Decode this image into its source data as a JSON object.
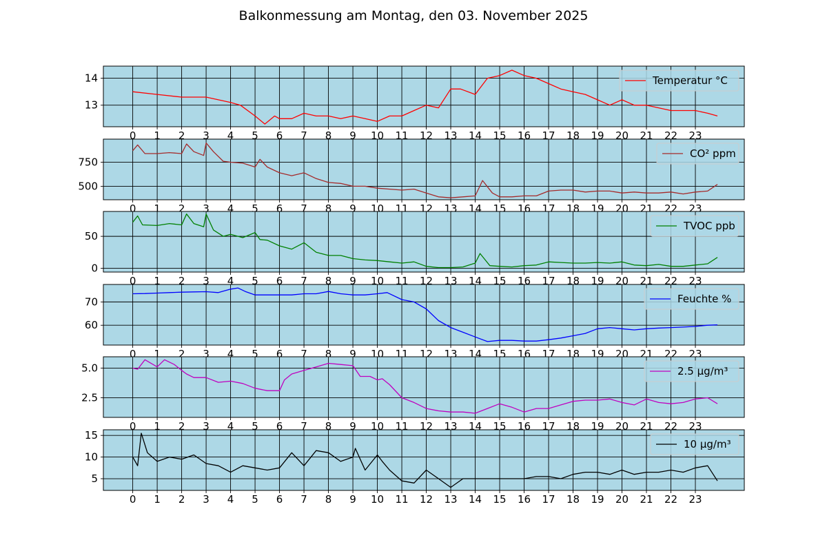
{
  "figure": {
    "title": "Balkonmessung am Montag, den 03. November 2025",
    "background": "#ffffff",
    "panel_background": "#add8e6"
  },
  "chart_data": [
    {
      "type": "line",
      "legend": "top-right",
      "grid": true,
      "x_ticks": [
        0,
        1,
        2,
        3,
        4,
        5,
        6,
        7,
        8,
        9,
        10,
        11,
        12,
        13,
        14,
        15,
        16,
        17,
        18,
        19,
        20,
        21,
        22,
        23
      ],
      "xlim": [
        -1.2,
        25.0
      ],
      "ylim": [
        12.2,
        14.45
      ],
      "y_ticks": [
        13,
        14
      ],
      "y_tick_labels": [
        "13",
        "14"
      ],
      "series": [
        {
          "name": "Temperatur °C",
          "color": "#ff0000",
          "x": [
            0,
            1,
            2,
            3,
            4,
            4.4,
            5,
            5.4,
            5.8,
            6,
            6.5,
            7,
            7.5,
            8,
            8.5,
            9,
            9.5,
            10,
            10.5,
            11,
            11.5,
            12,
            12.5,
            13,
            13.4,
            14,
            14.5,
            15,
            15.5,
            16,
            16.5,
            17,
            17.5,
            18,
            18.5,
            19,
            19.5,
            20,
            20.5,
            21,
            21.5,
            22,
            22.5,
            23,
            23.5,
            23.9
          ],
          "values": [
            13.5,
            13.4,
            13.3,
            13.3,
            13.1,
            13.0,
            12.6,
            12.3,
            12.6,
            12.5,
            12.5,
            12.7,
            12.6,
            12.6,
            12.5,
            12.6,
            12.5,
            12.4,
            12.6,
            12.6,
            12.8,
            13.0,
            12.9,
            13.6,
            13.6,
            13.4,
            14.0,
            14.1,
            14.3,
            14.1,
            14.0,
            13.8,
            13.6,
            13.5,
            13.4,
            13.2,
            13.0,
            13.2,
            13.0,
            13.0,
            12.9,
            12.8,
            12.8,
            12.8,
            12.7,
            12.6
          ]
        }
      ]
    },
    {
      "type": "line",
      "legend": "top-right",
      "grid": true,
      "x_ticks": [
        0,
        1,
        2,
        3,
        4,
        5,
        6,
        7,
        8,
        9,
        10,
        11,
        12,
        13,
        14,
        15,
        16,
        17,
        18,
        19,
        20,
        21,
        22,
        23
      ],
      "xlim": [
        -1.2,
        25.0
      ],
      "ylim": [
        360,
        990
      ],
      "y_ticks": [
        500,
        750
      ],
      "y_tick_labels": [
        "500",
        "750"
      ],
      "series": [
        {
          "name": "CO² ppm",
          "color": "#a52a2a",
          "x": [
            0,
            0.2,
            0.5,
            1,
            1.5,
            2,
            2.2,
            2.5,
            2.9,
            3,
            3.3,
            3.7,
            4,
            4.5,
            5,
            5.2,
            5.5,
            6,
            6.5,
            7,
            7.5,
            8,
            8.5,
            9,
            9.5,
            10,
            10.5,
            11,
            11.5,
            12,
            12.5,
            13,
            13.5,
            14,
            14.3,
            14.7,
            15,
            15.5,
            16,
            16.5,
            17,
            17.5,
            18,
            18.5,
            19,
            19.5,
            20,
            20.5,
            21,
            21.5,
            22,
            22.5,
            23,
            23.5,
            23.9
          ],
          "values": [
            870,
            930,
            840,
            840,
            850,
            840,
            940,
            860,
            820,
            950,
            860,
            760,
            750,
            740,
            700,
            780,
            700,
            640,
            610,
            640,
            580,
            540,
            530,
            500,
            500,
            480,
            470,
            460,
            470,
            430,
            390,
            380,
            390,
            400,
            560,
            430,
            390,
            390,
            400,
            400,
            450,
            460,
            460,
            440,
            450,
            450,
            430,
            440,
            430,
            430,
            440,
            420,
            440,
            450,
            520
          ]
        }
      ]
    },
    {
      "type": "line",
      "legend": "top-right",
      "grid": true,
      "x_ticks": [
        0,
        1,
        2,
        3,
        4,
        5,
        6,
        7,
        8,
        9,
        10,
        11,
        12,
        13,
        14,
        15,
        16,
        17,
        18,
        19,
        20,
        21,
        22,
        23
      ],
      "xlim": [
        -1.2,
        25.0
      ],
      "ylim": [
        -6,
        89
      ],
      "y_ticks": [
        0,
        50
      ],
      "y_tick_labels": [
        "0",
        "50"
      ],
      "series": [
        {
          "name": "TVOC ppb",
          "color": "#008000",
          "x": [
            0,
            0.2,
            0.4,
            1,
            1.5,
            2,
            2.2,
            2.5,
            2.9,
            3,
            3.3,
            3.7,
            4,
            4.5,
            5,
            5.2,
            5.5,
            6,
            6.5,
            7,
            7.5,
            8,
            8.5,
            9,
            9.5,
            10,
            10.5,
            11,
            11.5,
            12,
            12.5,
            13,
            13.5,
            14,
            14.2,
            14.6,
            15,
            15.5,
            16,
            16.5,
            17,
            17.5,
            18,
            18.5,
            19,
            19.5,
            20,
            20.5,
            21,
            21.5,
            22,
            22.5,
            23,
            23.5,
            23.9
          ],
          "values": [
            72,
            82,
            68,
            67,
            70,
            68,
            85,
            70,
            65,
            85,
            60,
            50,
            53,
            48,
            56,
            45,
            44,
            35,
            30,
            40,
            25,
            20,
            20,
            15,
            13,
            12,
            10,
            8,
            10,
            3,
            1,
            1,
            2,
            8,
            23,
            4,
            3,
            2,
            4,
            5,
            10,
            9,
            8,
            8,
            9,
            8,
            10,
            5,
            4,
            6,
            3,
            3,
            5,
            7,
            17
          ]
        }
      ]
    },
    {
      "type": "line",
      "legend": "top-right",
      "grid": true,
      "x_ticks": [
        0,
        1,
        2,
        3,
        4,
        5,
        6,
        7,
        8,
        9,
        10,
        11,
        12,
        13,
        14,
        15,
        16,
        17,
        18,
        19,
        20,
        21,
        22,
        23
      ],
      "xlim": [
        -1.2,
        25.0
      ],
      "ylim": [
        51.5,
        77.5
      ],
      "y_ticks": [
        60,
        70
      ],
      "y_tick_labels": [
        "60",
        "70"
      ],
      "series": [
        {
          "name": "Feuchte %",
          "color": "#0000ff",
          "x": [
            0,
            0.5,
            1,
            1.5,
            2,
            2.5,
            3,
            3.5,
            4,
            4.3,
            4.6,
            5,
            5.5,
            6,
            6.5,
            7,
            7.5,
            8,
            8.5,
            9,
            9.5,
            10,
            10.4,
            11,
            11.5,
            12,
            12.5,
            13,
            13.5,
            14,
            14.5,
            15,
            15.5,
            16,
            16.5,
            17,
            17.5,
            18,
            18.5,
            19,
            19.5,
            20,
            20.5,
            21,
            21.5,
            22,
            22.5,
            23,
            23.5,
            23.9
          ],
          "values": [
            73.5,
            73.6,
            73.8,
            74.0,
            74.2,
            74.3,
            74.4,
            74.0,
            75.5,
            76.0,
            74.5,
            73.0,
            73.0,
            73.0,
            73.0,
            73.5,
            73.5,
            74.5,
            73.5,
            73.0,
            73.0,
            73.5,
            74.0,
            71.0,
            70.0,
            67.0,
            62.0,
            59.0,
            57.0,
            55.0,
            53.0,
            53.5,
            53.5,
            53.2,
            53.2,
            53.8,
            54.5,
            55.5,
            56.5,
            58.5,
            59.0,
            58.5,
            58.0,
            58.5,
            58.8,
            59.0,
            59.2,
            59.5,
            60.0,
            60.2
          ]
        }
      ]
    },
    {
      "type": "line",
      "legend": "top-right",
      "grid": true,
      "x_ticks": [
        0,
        1,
        2,
        3,
        4,
        5,
        6,
        7,
        8,
        9,
        10,
        11,
        12,
        13,
        14,
        15,
        16,
        17,
        18,
        19,
        20,
        21,
        22,
        23
      ],
      "xlim": [
        -1.2,
        25.0
      ],
      "ylim": [
        0.85,
        5.95
      ],
      "y_ticks": [
        2.5,
        5.0
      ],
      "y_tick_labels": [
        "2.5",
        "5.0"
      ],
      "series": [
        {
          "name": "2.5 µg/m³",
          "color": "#bf00bf",
          "x": [
            0,
            0.2,
            0.5,
            1,
            1.3,
            1.7,
            2,
            2.2,
            2.5,
            3,
            3.5,
            4,
            4.5,
            5,
            5.5,
            6,
            6.2,
            6.5,
            7,
            7.5,
            8,
            8.5,
            9,
            9.3,
            9.7,
            10,
            10.2,
            10.5,
            11,
            11.5,
            12,
            12.5,
            13,
            13.5,
            14,
            14.5,
            15,
            15.5,
            16,
            16.5,
            17,
            17.5,
            18,
            18.5,
            19,
            19.5,
            20,
            20.5,
            21,
            21.5,
            22,
            22.5,
            23,
            23.5,
            23.9
          ],
          "values": [
            5.0,
            4.9,
            5.7,
            5.1,
            5.7,
            5.3,
            4.8,
            4.5,
            4.2,
            4.2,
            3.8,
            3.9,
            3.7,
            3.3,
            3.1,
            3.1,
            4.0,
            4.5,
            4.8,
            5.1,
            5.4,
            5.3,
            5.2,
            4.3,
            4.3,
            4.0,
            4.1,
            3.6,
            2.5,
            2.1,
            1.6,
            1.4,
            1.3,
            1.3,
            1.2,
            1.6,
            2.0,
            1.7,
            1.3,
            1.6,
            1.6,
            1.9,
            2.2,
            2.3,
            2.3,
            2.4,
            2.1,
            1.9,
            2.4,
            2.1,
            2.0,
            2.1,
            2.4,
            2.5,
            2.0
          ]
        }
      ]
    },
    {
      "type": "line",
      "legend": "top-right",
      "grid": true,
      "x_ticks": [
        0,
        1,
        2,
        3,
        4,
        5,
        6,
        7,
        8,
        9,
        10,
        11,
        12,
        13,
        14,
        15,
        16,
        17,
        18,
        19,
        20,
        21,
        22,
        23
      ],
      "x_tick_labels": [
        "0",
        "1",
        "2",
        "3",
        "4",
        "5",
        "6",
        "7",
        "8",
        "9",
        "10",
        "11",
        "12",
        "13",
        "14",
        "15",
        "16",
        "17",
        "18",
        "19",
        "20",
        "21",
        "22",
        "23"
      ],
      "xlim": [
        -1.2,
        25.0
      ],
      "ylim": [
        2.3,
        16.3
      ],
      "y_ticks": [
        5,
        10,
        15
      ],
      "y_tick_labels": [
        "5",
        "10",
        "15"
      ],
      "series": [
        {
          "name": "10 µg/m³",
          "color": "#000000",
          "x": [
            0,
            0.2,
            0.35,
            0.6,
            1,
            1.5,
            2,
            2.5,
            3,
            3.5,
            4,
            4.5,
            5,
            5.5,
            6,
            6.5,
            7,
            7.5,
            8,
            8.5,
            9,
            9.1,
            9.5,
            10,
            10.2,
            10.5,
            11,
            11.5,
            12,
            12.5,
            13,
            13.5,
            14,
            14.5,
            15,
            15.5,
            16,
            16.5,
            17,
            17.5,
            18,
            18.5,
            19,
            19.5,
            20,
            20.5,
            21,
            21.5,
            22,
            22.5,
            23,
            23.5,
            23.9
          ],
          "values": [
            10,
            8,
            15.5,
            11,
            9,
            10,
            9.5,
            10.5,
            8.5,
            8,
            6.5,
            8,
            7.5,
            7,
            7.5,
            11,
            8,
            11.5,
            11,
            9,
            10,
            12,
            7,
            10.5,
            9,
            7,
            4.5,
            4,
            7,
            5,
            3,
            5,
            5,
            5,
            5,
            5,
            5,
            5.5,
            5.5,
            5,
            6,
            6.5,
            6.5,
            6,
            7,
            6,
            6.5,
            6.5,
            7,
            6.5,
            7.5,
            8,
            4.5
          ]
        }
      ]
    }
  ]
}
